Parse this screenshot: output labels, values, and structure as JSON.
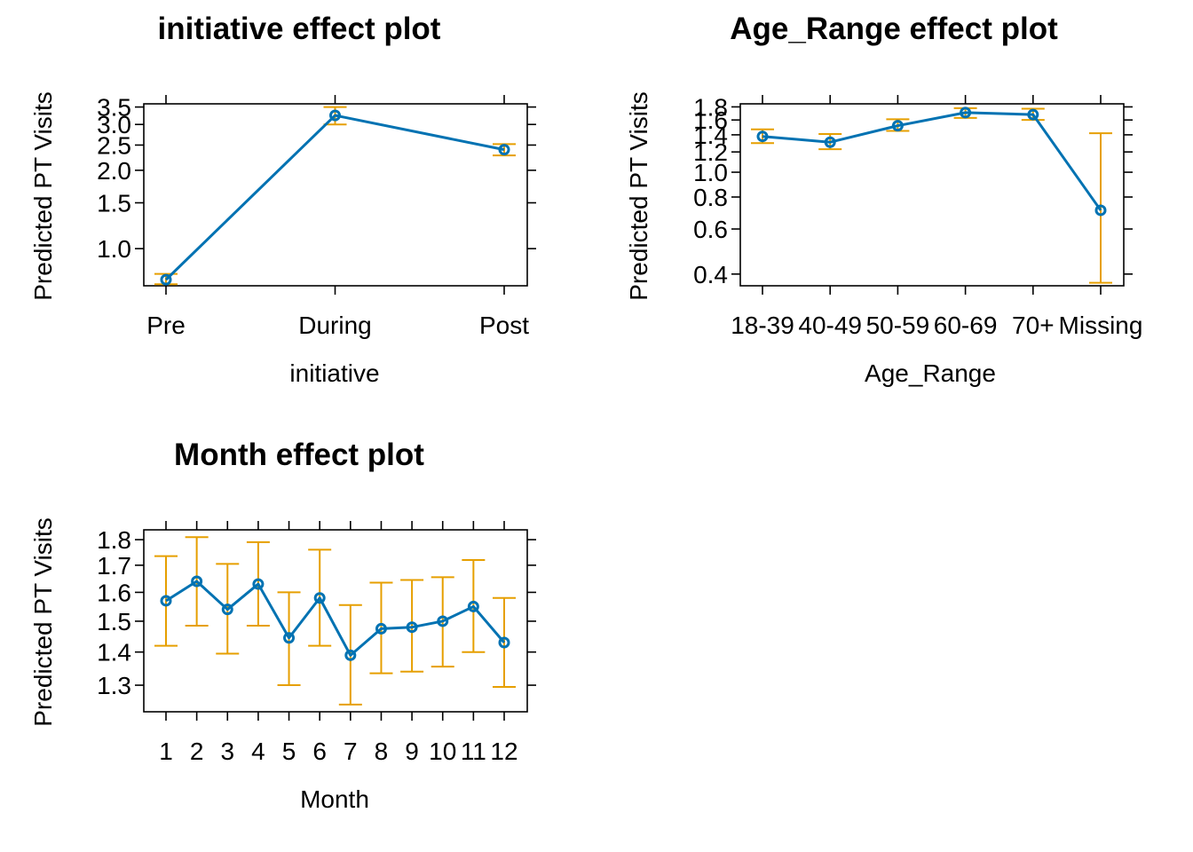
{
  "chart_data": [
    {
      "type": "line",
      "title": "initiative effect plot",
      "xlabel": "initiative",
      "ylabel": "Predicted PT Visits",
      "y_scale": "log",
      "ylim": [
        0.72,
        3.6
      ],
      "yticks": [
        "1.0",
        "1.5",
        "2.0",
        "2.5",
        "3.0",
        "3.5"
      ],
      "categories": [
        "Pre",
        "During",
        "Post"
      ],
      "values": [
        0.76,
        3.25,
        2.4
      ],
      "lower": [
        0.73,
        3.0,
        2.28
      ],
      "upper": [
        0.8,
        3.5,
        2.52
      ],
      "grid": false,
      "colors": {
        "line": "#0072B2",
        "ci": "#E69F00"
      }
    },
    {
      "type": "line",
      "title": "Age_Range effect plot",
      "xlabel": "Age_Range",
      "ylabel": "Predicted PT Visits",
      "y_scale": "log",
      "ylim": [
        0.36,
        1.85
      ],
      "yticks": [
        "0.4",
        "0.6",
        "0.8",
        "1.0",
        "1.2",
        "1.4",
        "1.6",
        "1.8"
      ],
      "categories": [
        "18-39",
        "40-49",
        "50-59",
        "60-69",
        "70+",
        "Missing"
      ],
      "values": [
        1.38,
        1.31,
        1.52,
        1.71,
        1.68,
        0.71
      ],
      "lower": [
        1.3,
        1.23,
        1.45,
        1.63,
        1.6,
        0.37
      ],
      "upper": [
        1.47,
        1.41,
        1.61,
        1.78,
        1.77,
        1.42
      ],
      "grid": false,
      "colors": {
        "line": "#0072B2",
        "ci": "#E69F00"
      }
    },
    {
      "type": "line",
      "title": "Month effect plot",
      "xlabel": "Month",
      "ylabel": "Predicted PT Visits",
      "y_scale": "log",
      "ylim": [
        1.225,
        1.84
      ],
      "yticks": [
        "1.3",
        "1.4",
        "1.5",
        "1.6",
        "1.7",
        "1.8"
      ],
      "categories": [
        "1",
        "2",
        "3",
        "4",
        "5",
        "6",
        "7",
        "8",
        "9",
        "10",
        "11",
        "12"
      ],
      "values": [
        1.57,
        1.64,
        1.54,
        1.63,
        1.445,
        1.58,
        1.39,
        1.475,
        1.48,
        1.5,
        1.55,
        1.43
      ],
      "lower": [
        1.42,
        1.485,
        1.395,
        1.485,
        1.3,
        1.42,
        1.245,
        1.335,
        1.34,
        1.355,
        1.4,
        1.295
      ],
      "upper": [
        1.735,
        1.81,
        1.705,
        1.79,
        1.6,
        1.76,
        1.555,
        1.635,
        1.645,
        1.655,
        1.72,
        1.58
      ],
      "grid": false,
      "colors": {
        "line": "#0072B2",
        "ci": "#E69F00"
      }
    }
  ]
}
